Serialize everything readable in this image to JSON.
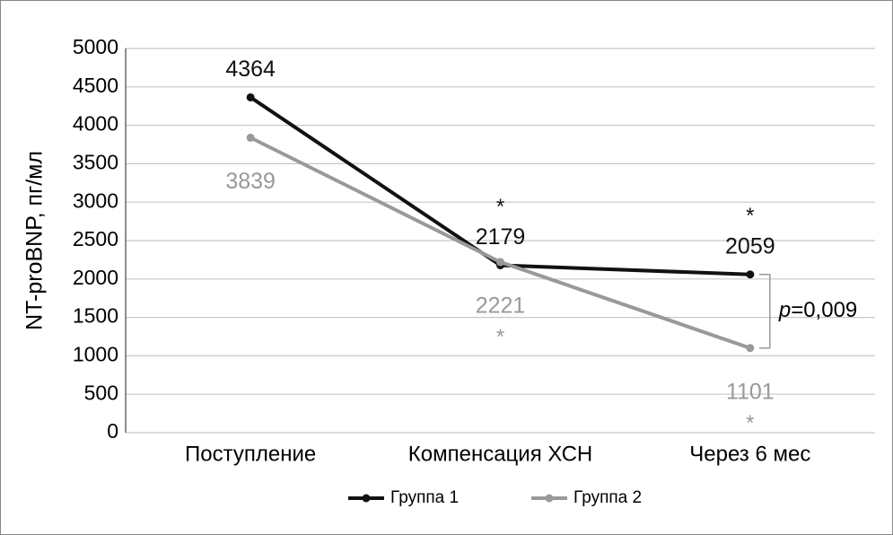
{
  "chart_data": {
    "type": "line",
    "y_label": "NT-proBNP, пг/мл",
    "categories": [
      "Поступление",
      "Компенсация ХСН",
      "Через 6 мес"
    ],
    "series": [
      {
        "name": "Группа 1",
        "color": "#111111",
        "values": [
          4364,
          2179,
          2059
        ],
        "markers": [
          null,
          "*",
          "*"
        ]
      },
      {
        "name": "Группа 2",
        "color": "#999999",
        "values": [
          3839,
          2221,
          1101
        ],
        "markers": [
          null,
          "*",
          "*"
        ]
      }
    ],
    "ylim": [
      0,
      5000
    ],
    "yticks": [
      0,
      500,
      1000,
      1500,
      2000,
      2500,
      3000,
      3500,
      4000,
      4500,
      5000
    ],
    "grid": true,
    "p_value": {
      "symbol": "p",
      "text": "=0,009"
    },
    "legend": "bottom"
  }
}
